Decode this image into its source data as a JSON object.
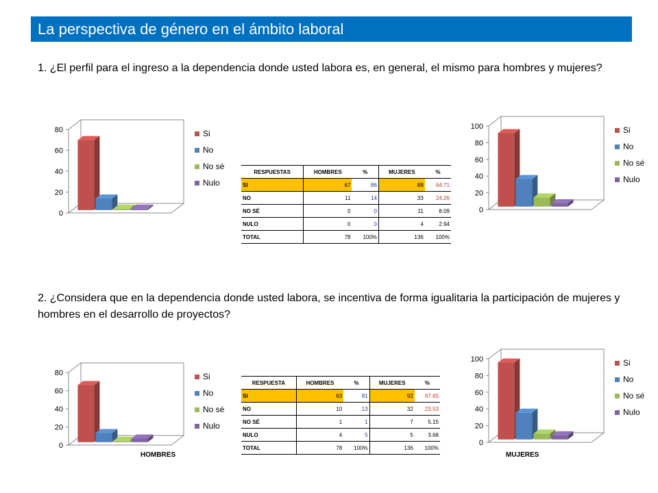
{
  "slide": {
    "title": "La perspectiva de género en el ámbito laboral",
    "question1": "1. ¿El perfil para el ingreso a la dependencia donde usted labora es, en general, el mismo para hombres y mujeres?",
    "question2": "2.  ¿Considera que en la dependencia donde usted labora, se incentiva de forma igualitaria la participación de mujeres y hombres en el desarrollo de  proyectos?"
  },
  "legend": [
    "Si",
    "No",
    "No sé",
    "Nulo"
  ],
  "colors": {
    "title_bar": "#0070C0",
    "si": "#C0504D",
    "no": "#4F81BD",
    "nose": "#9BBB59",
    "nulo": "#8064A2",
    "highlight": "#FFC000"
  },
  "chart_data": [
    {
      "type": "bar",
      "categories": [
        "Si",
        "No",
        "No sé",
        "Nulo"
      ],
      "values": [
        67,
        11,
        0,
        0
      ],
      "ylim": [
        0,
        80
      ],
      "yticks": [
        0,
        20,
        40,
        60,
        80
      ],
      "legend": "right",
      "caption": ""
    },
    {
      "type": "bar",
      "categories": [
        "Si",
        "No",
        "No sé",
        "Nulo"
      ],
      "values": [
        88,
        33,
        11,
        4
      ],
      "ylim": [
        0,
        100
      ],
      "yticks": [
        0,
        20,
        40,
        60,
        80,
        100
      ],
      "legend": "right",
      "caption": ""
    },
    {
      "type": "bar",
      "categories": [
        "Si",
        "No",
        "No sé",
        "Nulo"
      ],
      "values": [
        63,
        10,
        1,
        4
      ],
      "ylim": [
        0,
        80
      ],
      "yticks": [
        0,
        20,
        40,
        60,
        80
      ],
      "legend": "right",
      "caption": "HOMBRES"
    },
    {
      "type": "bar",
      "categories": [
        "Si",
        "No",
        "No sé",
        "Nulo"
      ],
      "values": [
        92,
        32,
        7,
        5
      ],
      "ylim": [
        0,
        100
      ],
      "yticks": [
        0,
        20,
        40,
        60,
        80,
        100
      ],
      "legend": "right",
      "caption": "MUJERES"
    }
  ],
  "table1": {
    "headers": [
      "RESPUESTAS",
      "HOMBRES",
      "%",
      "MUJERES",
      "%"
    ],
    "rows": [
      [
        "SI",
        "67",
        "86",
        "88",
        "64.71"
      ],
      [
        "NO",
        "11",
        "14",
        "33",
        "24.26"
      ],
      [
        "NO SÉ",
        "0",
        "0",
        "11",
        "8.09"
      ],
      [
        "NULO",
        "0",
        "0",
        "4",
        "2.94"
      ],
      [
        "TOTAL",
        "78",
        "100%",
        "136",
        "100%"
      ]
    ]
  },
  "table2": {
    "headers": [
      "RESPUESTA",
      "HOMBRES",
      "%",
      "MUJERES",
      "%"
    ],
    "rows": [
      [
        "SI",
        "63",
        "81",
        "92",
        "67.65"
      ],
      [
        "NO",
        "10",
        "13",
        "32",
        "23.53"
      ],
      [
        "NO SÉ",
        "1",
        "1",
        "7",
        "5.15"
      ],
      [
        "NULO",
        "4",
        "5",
        "5",
        "3.68"
      ],
      [
        "TOTAL",
        "78",
        "100%",
        "136",
        "100%"
      ]
    ]
  }
}
